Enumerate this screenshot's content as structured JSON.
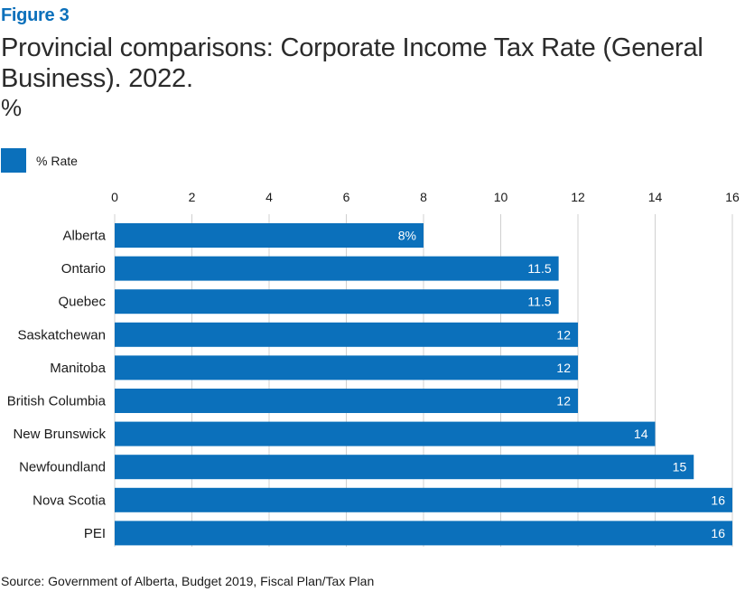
{
  "figure_label": "Figure 3",
  "title": "Provincial comparisons: Corporate Income Tax Rate (General Business). 2022.",
  "unit": "%",
  "legend": {
    "label": "% Rate",
    "color": "#0b70bb"
  },
  "source": "Source: Government of Alberta, Budget 2019, Fiscal Plan/Tax Plan",
  "chart_data": {
    "type": "bar",
    "orientation": "horizontal",
    "categories": [
      "Alberta",
      "Ontario",
      "Quebec",
      "Saskatchewan",
      "Manitoba",
      "British Columbia",
      "New Brunswick",
      "Newfoundland",
      "Nova Scotia",
      "PEI"
    ],
    "series": [
      {
        "name": "% Rate",
        "color": "#0b70bb",
        "values": [
          8,
          11.5,
          11.5,
          12,
          12,
          12,
          14,
          15,
          16,
          16
        ],
        "data_labels": [
          "8%",
          "11.5",
          "11.5",
          "12",
          "12",
          "12",
          "14",
          "15",
          "16",
          "16"
        ]
      }
    ],
    "xlim": [
      0,
      16
    ],
    "xticks": [
      "0",
      "2",
      "4",
      "6",
      "8",
      "10",
      "12",
      "14",
      "16"
    ],
    "x_axis_position": "top",
    "grid": true,
    "legend_position": "top-left"
  }
}
